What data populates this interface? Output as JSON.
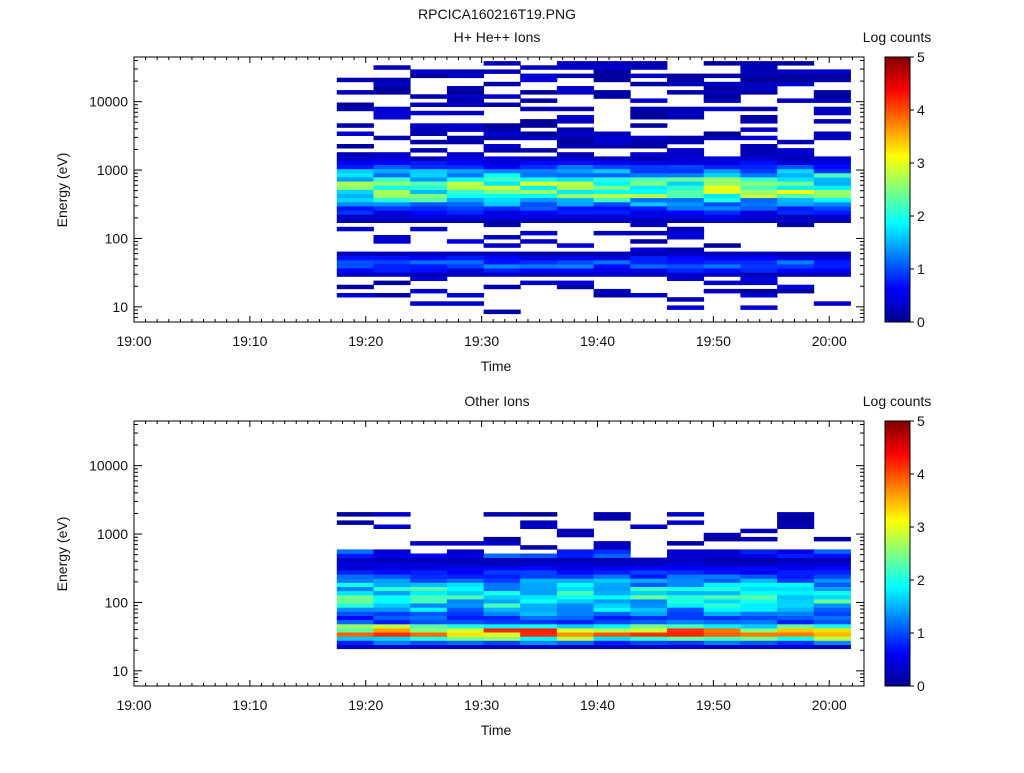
{
  "figure_title": "RPCICA160216T19.PNG",
  "chart_data": [
    {
      "type": "heatmap",
      "title": "H+ He++ Ions",
      "xlabel": "Time",
      "ylabel": "Energy (eV)",
      "x_ticks": [
        "19:00",
        "19:10",
        "19:20",
        "19:30",
        "19:40",
        "19:50",
        "20:00"
      ],
      "x_range": [
        "19:00",
        "20:03"
      ],
      "y_scale": "log",
      "y_range": [
        6,
        45000
      ],
      "y_ticks": [
        "10",
        "100",
        "1000",
        "10000"
      ],
      "colorbar": {
        "label": "Log counts",
        "range": [
          0,
          5
        ],
        "ticks": [
          "0",
          "1",
          "2",
          "3",
          "4",
          "5"
        ]
      },
      "time_bins": [
        "19:17:30",
        "19:20:40",
        "19:23:50",
        "19:27:00",
        "19:30:10",
        "19:33:20",
        "19:36:30",
        "19:39:40",
        "19:42:50",
        "19:46:00",
        "19:49:10",
        "19:52:20",
        "19:55:30",
        "19:58:40"
      ],
      "peak_energy_band_eV": [
        300,
        1000
      ],
      "peak_level": 2.8,
      "secondary_band_eV": [
        35,
        50
      ],
      "secondary_level": 1.2
    },
    {
      "type": "heatmap",
      "title": "Other Ions",
      "xlabel": "Time",
      "ylabel": "Energy (eV)",
      "x_ticks": [
        "19:00",
        "19:10",
        "19:20",
        "19:30",
        "19:40",
        "19:50",
        "20:00"
      ],
      "x_range": [
        "19:00",
        "20:03"
      ],
      "y_scale": "log",
      "y_range": [
        6,
        45000
      ],
      "y_ticks": [
        "10",
        "100",
        "1000",
        "10000"
      ],
      "colorbar": {
        "label": "Log counts",
        "range": [
          0,
          5
        ],
        "ticks": [
          "0",
          "1",
          "2",
          "3",
          "4",
          "5"
        ]
      },
      "time_bins": [
        "19:17:30",
        "19:20:40",
        "19:23:50",
        "19:27:00",
        "19:30:10",
        "19:33:20",
        "19:36:30",
        "19:39:40",
        "19:42:50",
        "19:46:00",
        "19:49:10",
        "19:52:20",
        "19:55:30",
        "19:58:40"
      ],
      "peak_energy_band_eV": [
        30,
        45
      ],
      "peak_level": 3.9,
      "secondary_band_eV": [
        60,
        250
      ],
      "secondary_level": 2.2
    }
  ]
}
